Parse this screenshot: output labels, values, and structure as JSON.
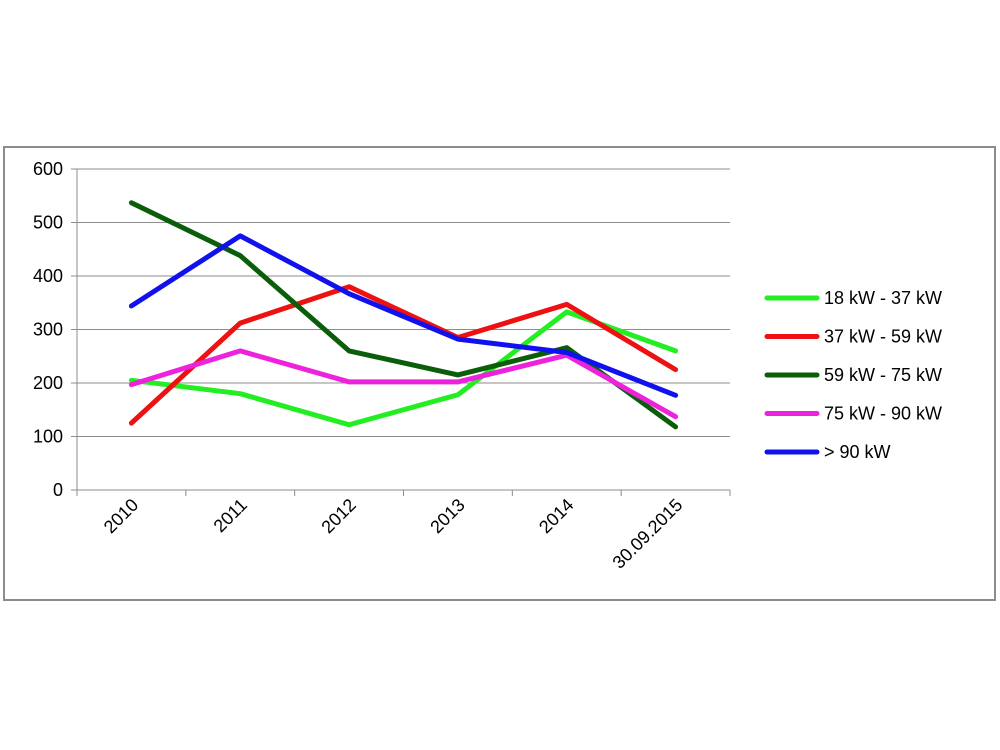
{
  "chart_data": {
    "type": "line",
    "title": "",
    "xlabel": "",
    "ylabel": "",
    "categories": [
      "2010",
      "2011",
      "2012",
      "2013",
      "2014",
      "30.09.2015"
    ],
    "ylim": [
      0,
      600
    ],
    "yticks": [
      "0",
      "100",
      "200",
      "300",
      "400",
      "500",
      "600"
    ],
    "grid": "horizontal",
    "legend_position": "right",
    "series": [
      {
        "name": "18 kW - 37 kW",
        "color": "#22ee22",
        "values": [
          205,
          180,
          122,
          178,
          333,
          260
        ]
      },
      {
        "name": "37 kW - 59 kW",
        "color": "#ee1111",
        "values": [
          125,
          312,
          380,
          285,
          347,
          225
        ]
      },
      {
        "name": "59 kW - 75 kW",
        "color": "#0a5e0a",
        "values": [
          537,
          438,
          260,
          215,
          266,
          118
        ]
      },
      {
        "name": "75 kW - 90 kW",
        "color": "#ee22dd",
        "values": [
          197,
          260,
          202,
          202,
          252,
          137
        ]
      },
      {
        "name": "> 90 kW",
        "color": "#1111ee",
        "values": [
          344,
          475,
          367,
          282,
          257,
          177
        ]
      }
    ]
  }
}
